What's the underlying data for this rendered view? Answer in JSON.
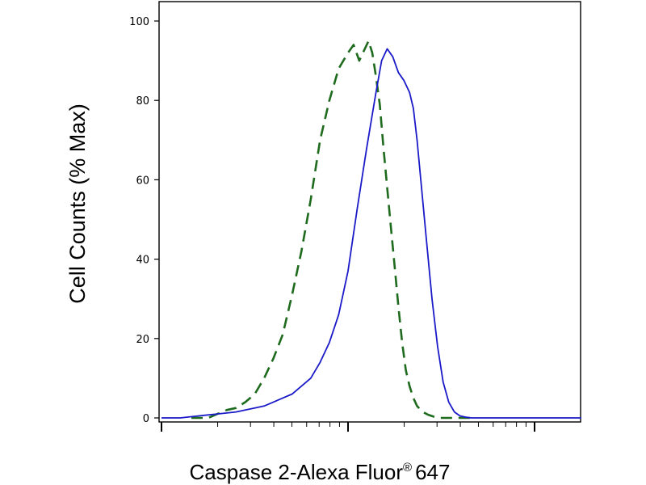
{
  "chart_data": {
    "type": "line",
    "xlabel_text": "Caspase 2-Alexa Fluor",
    "xlabel_reg": "®",
    "xlabel_suffix": "647",
    "ylabel": "Cell Counts (% Max)",
    "x_scale": "log",
    "ylim": [
      0,
      100
    ],
    "yticks": [
      {
        "value": 0,
        "label": "0"
      },
      {
        "value": 20,
        "label": "20"
      },
      {
        "value": 40,
        "label": "40"
      },
      {
        "value": 60,
        "label": "60"
      },
      {
        "value": 80,
        "label": "80"
      },
      {
        "value": 100,
        "label": "100"
      }
    ],
    "x_decades_visible": 3,
    "x_major_tick_decade_positions": [
      0,
      1,
      2
    ],
    "grid": false,
    "legend": "none",
    "series": [
      {
        "style": "dashed",
        "color": "#1e6b1e",
        "x": [
          0.16,
          0.25,
          0.3,
          0.35,
          0.4,
          0.45,
          0.5,
          0.55,
          0.6,
          0.65,
          0.7,
          0.75,
          0.8,
          0.85,
          0.9,
          0.95,
          1.0,
          1.03,
          1.06,
          1.09,
          1.11,
          1.13,
          1.15,
          1.17,
          1.19,
          1.21,
          1.23,
          1.25,
          1.27,
          1.29,
          1.31,
          1.33,
          1.35,
          1.37,
          1.4,
          1.43,
          1.46,
          1.49,
          1.52,
          1.55,
          1.58,
          1.62,
          1.68
        ],
        "y": [
          0,
          0,
          1,
          2,
          2.5,
          4,
          6,
          10,
          15,
          21,
          31,
          42,
          55,
          70,
          80,
          88,
          92,
          94,
          90,
          93,
          95,
          92,
          86,
          79,
          68,
          58,
          48,
          38,
          28,
          19,
          12,
          8,
          5,
          3,
          1.5,
          0.8,
          0.3,
          0,
          0,
          0,
          0,
          0,
          0
        ]
      },
      {
        "style": "solid",
        "color": "#1a1ac8",
        "x": [
          0.0,
          0.1,
          0.2,
          0.3,
          0.4,
          0.5,
          0.55,
          0.6,
          0.65,
          0.7,
          0.75,
          0.8,
          0.85,
          0.9,
          0.95,
          1.0,
          1.05,
          1.1,
          1.15,
          1.18,
          1.21,
          1.24,
          1.27,
          1.3,
          1.33,
          1.35,
          1.37,
          1.39,
          1.42,
          1.45,
          1.48,
          1.51,
          1.54,
          1.57,
          1.6,
          1.63,
          1.66,
          1.7,
          1.75,
          1.8,
          1.85,
          1.9,
          2.0,
          2.1,
          2.2,
          2.25
        ],
        "y": [
          0,
          0,
          0.5,
          1,
          1.5,
          2.5,
          3,
          4,
          5,
          6,
          8,
          10,
          14,
          19,
          26,
          37,
          53,
          68,
          82,
          90,
          93,
          91,
          87,
          85,
          82,
          78,
          70,
          60,
          45,
          30,
          18,
          9,
          4,
          1.5,
          0.5,
          0.2,
          0,
          0,
          0,
          0,
          0,
          0,
          0,
          0,
          0,
          0
        ]
      }
    ]
  }
}
